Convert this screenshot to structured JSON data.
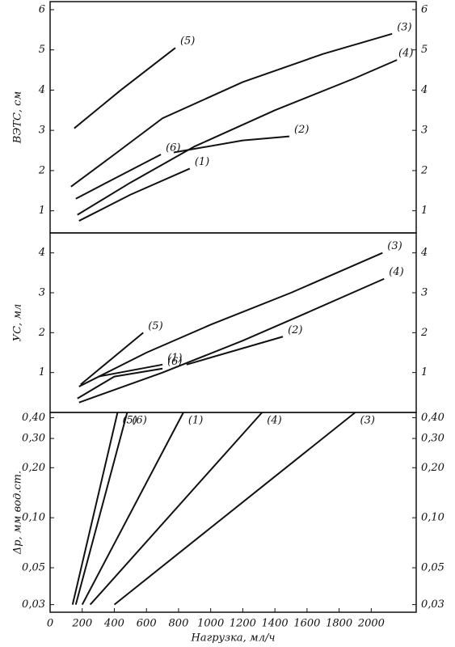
{
  "chart_data": [
    {
      "type": "line",
      "y_label": "ВЭТС, см",
      "ylim": [
        0.45,
        6.2
      ],
      "yticks": [
        1,
        2,
        3,
        4,
        5,
        6
      ],
      "xlim": [
        0,
        2280
      ],
      "color": "#111",
      "series": [
        {
          "name": "(5)",
          "x": [
            150,
            440,
            780
          ],
          "values": [
            3.05,
            4.0,
            5.05
          ]
        },
        {
          "name": "(3)",
          "x": [
            130,
            400,
            700,
            1200,
            1700,
            2130
          ],
          "values": [
            1.6,
            2.4,
            3.3,
            4.2,
            4.9,
            5.4
          ]
        },
        {
          "name": "(4)",
          "x": [
            170,
            500,
            900,
            1400,
            1900,
            2160
          ],
          "values": [
            0.9,
            1.7,
            2.6,
            3.5,
            4.3,
            4.75
          ]
        },
        {
          "name": "(2)",
          "x": [
            770,
            1200,
            1490
          ],
          "values": [
            2.45,
            2.75,
            2.85
          ]
        },
        {
          "name": "(6)",
          "x": [
            160,
            400,
            690
          ],
          "values": [
            1.3,
            1.8,
            2.4
          ]
        },
        {
          "name": "(1)",
          "x": [
            180,
            500,
            870
          ],
          "values": [
            0.75,
            1.4,
            2.05
          ]
        }
      ]
    },
    {
      "type": "line",
      "y_label": "УС, мл",
      "ylim": [
        0,
        4.5
      ],
      "yticks": [
        1,
        2,
        3,
        4
      ],
      "xlim": [
        0,
        2280
      ],
      "color": "#111",
      "series": [
        {
          "name": "(3)",
          "x": [
            180,
            600,
            1000,
            1500,
            2070
          ],
          "values": [
            0.65,
            1.5,
            2.2,
            3.0,
            4.0
          ]
        },
        {
          "name": "(4)",
          "x": [
            180,
            700,
            1200,
            1600,
            2080
          ],
          "values": [
            0.25,
            1.0,
            1.8,
            2.5,
            3.35
          ]
        },
        {
          "name": "(5)",
          "x": [
            190,
            580
          ],
          "values": [
            0.7,
            2.0
          ]
        },
        {
          "name": "(6)",
          "x": [
            170,
            400,
            700
          ],
          "values": [
            0.35,
            0.9,
            1.1
          ]
        },
        {
          "name": "(1)",
          "x": [
            300,
            700
          ],
          "values": [
            0.9,
            1.2
          ]
        },
        {
          "name": "(2)",
          "x": [
            850,
            1450
          ],
          "values": [
            1.2,
            1.9
          ]
        }
      ]
    },
    {
      "type": "line",
      "y_label": "Δp, мм вод.ст.",
      "log_y": true,
      "ylim": [
        0.027,
        0.43
      ],
      "yticks": [
        {
          "value": 0.03,
          "label": "0,03"
        },
        {
          "value": 0.05,
          "label": "0,05"
        },
        {
          "value": 0.1,
          "label": "0,10"
        },
        {
          "value": 0.2,
          "label": "0,20"
        },
        {
          "value": 0.3,
          "label": "0,30"
        },
        {
          "value": 0.4,
          "label": "0,40"
        }
      ],
      "xlim": [
        0,
        2280
      ],
      "xticks": [
        0,
        200,
        400,
        600,
        800,
        1000,
        1200,
        1400,
        1600,
        1800,
        2000
      ],
      "x_label": "Нагрузка, мл/ч",
      "color": "#111",
      "series": [
        {
          "name": "(5)",
          "x": [
            140,
            420
          ],
          "values": [
            0.03,
            0.43
          ]
        },
        {
          "name": "(6)",
          "x": [
            160,
            480
          ],
          "values": [
            0.03,
            0.43
          ]
        },
        {
          "name": "(1)",
          "x": [
            200,
            830
          ],
          "values": [
            0.03,
            0.43
          ]
        },
        {
          "name": "(4)",
          "x": [
            250,
            1320
          ],
          "values": [
            0.03,
            0.43
          ]
        },
        {
          "name": "(3)",
          "x": [
            400,
            1900
          ],
          "values": [
            0.03,
            0.43
          ]
        }
      ]
    }
  ]
}
